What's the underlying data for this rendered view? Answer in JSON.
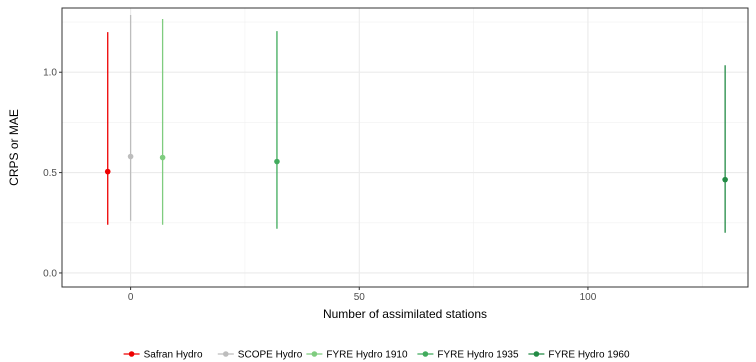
{
  "chart_data": {
    "type": "scatter",
    "title": "",
    "xlabel": "Number of assimilated stations",
    "ylabel": "CRPS or MAE",
    "xlim": [
      -15,
      135
    ],
    "ylim": [
      -0.07,
      1.32
    ],
    "x_ticks": [
      0,
      50,
      100
    ],
    "x_tick_labels": [
      "0",
      "50",
      "100"
    ],
    "y_ticks": [
      0.0,
      0.5,
      1.0
    ],
    "y_tick_labels": [
      "0.0",
      "0.5",
      "1.0"
    ],
    "grid": true,
    "legend_position": "bottom",
    "series": [
      {
        "name": "Safran Hydro",
        "color": "#ee0000",
        "x": -5,
        "y": 0.505,
        "lower": 0.24,
        "upper": 1.2
      },
      {
        "name": "SCOPE Hydro",
        "color": "#bdbdbd",
        "x": 0,
        "y": 0.58,
        "lower": 0.26,
        "upper": 1.285
      },
      {
        "name": "FYRE Hydro 1910",
        "color": "#7fcc7f",
        "x": 7,
        "y": 0.575,
        "lower": 0.24,
        "upper": 1.265
      },
      {
        "name": "FYRE Hydro 1935",
        "color": "#41ab5d",
        "x": 32,
        "y": 0.555,
        "lower": 0.22,
        "upper": 1.205
      },
      {
        "name": "FYRE Hydro 1960",
        "color": "#238b45",
        "x": 130,
        "y": 0.465,
        "lower": 0.2,
        "upper": 1.035
      }
    ]
  }
}
